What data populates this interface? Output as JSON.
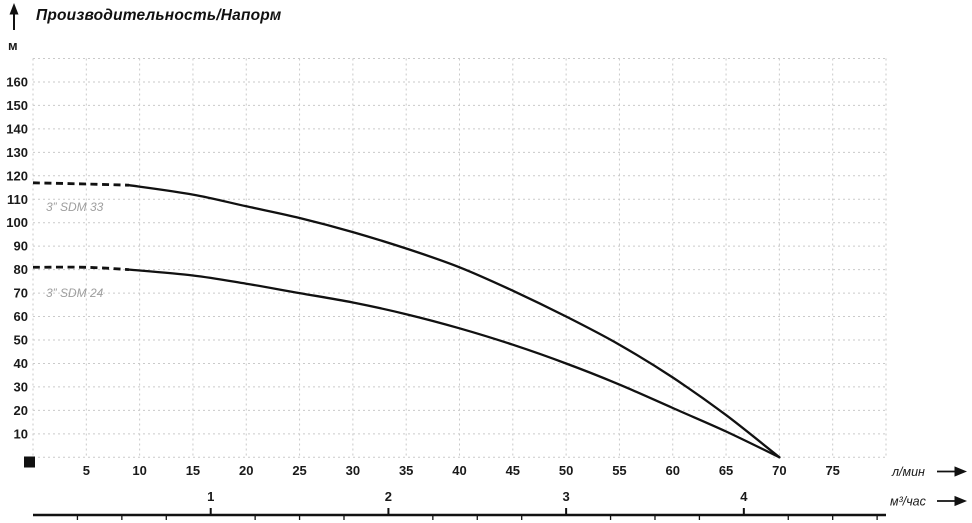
{
  "title": "Производительность/Напорм",
  "y_axis": {
    "unit": "м"
  },
  "x_axis": {
    "unit": "л/мин"
  },
  "x_axis_secondary": {
    "unit": "м³/час"
  },
  "colors": {
    "curve": "#111111",
    "grid": "#cacaca",
    "text": "#1a1a1a",
    "series_label": "#9e9e9e"
  },
  "chart_data": {
    "type": "line",
    "title": "Производительность/Напорм",
    "xlabel": "л/мин",
    "xlabel_secondary": "м³/час",
    "ylabel": "м",
    "xlim": [
      0,
      80
    ],
    "ylim": [
      0,
      170
    ],
    "grid": "dashed",
    "x_tick_step": 5,
    "y_tick_step": 10,
    "x_ticks": [
      5,
      10,
      15,
      20,
      25,
      30,
      35,
      40,
      45,
      50,
      55,
      60,
      65,
      70,
      75
    ],
    "y_ticks": [
      10,
      20,
      30,
      40,
      50,
      60,
      70,
      80,
      90,
      100,
      110,
      120,
      130,
      140,
      150,
      160
    ],
    "secondary_axis": {
      "unit": "м³/час",
      "lmin_per_unit": 16.6667,
      "labeled_ticks": [
        1,
        2,
        3,
        4
      ],
      "minor_tick_step": 0.25
    },
    "legend_position": "inline-annotations",
    "series": [
      {
        "name": "3” SDM 33",
        "dash_until_x": 9,
        "points": [
          [
            0,
            117
          ],
          [
            5,
            116.5
          ],
          [
            9,
            116
          ],
          [
            15,
            112
          ],
          [
            20,
            107
          ],
          [
            25,
            102
          ],
          [
            30,
            96
          ],
          [
            35,
            89
          ],
          [
            40,
            81
          ],
          [
            45,
            71
          ],
          [
            50,
            60
          ],
          [
            55,
            48
          ],
          [
            60,
            34
          ],
          [
            65,
            18
          ],
          [
            70,
            0
          ]
        ],
        "label_pos": [
          1.2,
          107
        ]
      },
      {
        "name": "3” SDM 24",
        "dash_until_x": 9,
        "points": [
          [
            0,
            81
          ],
          [
            5,
            81
          ],
          [
            9,
            80
          ],
          [
            15,
            77.5
          ],
          [
            20,
            74
          ],
          [
            25,
            70
          ],
          [
            30,
            66
          ],
          [
            35,
            61
          ],
          [
            40,
            55
          ],
          [
            45,
            48
          ],
          [
            50,
            40
          ],
          [
            55,
            31
          ],
          [
            60,
            21
          ],
          [
            65,
            11
          ],
          [
            70,
            0
          ]
        ],
        "label_pos": [
          1.2,
          70
        ]
      }
    ]
  }
}
